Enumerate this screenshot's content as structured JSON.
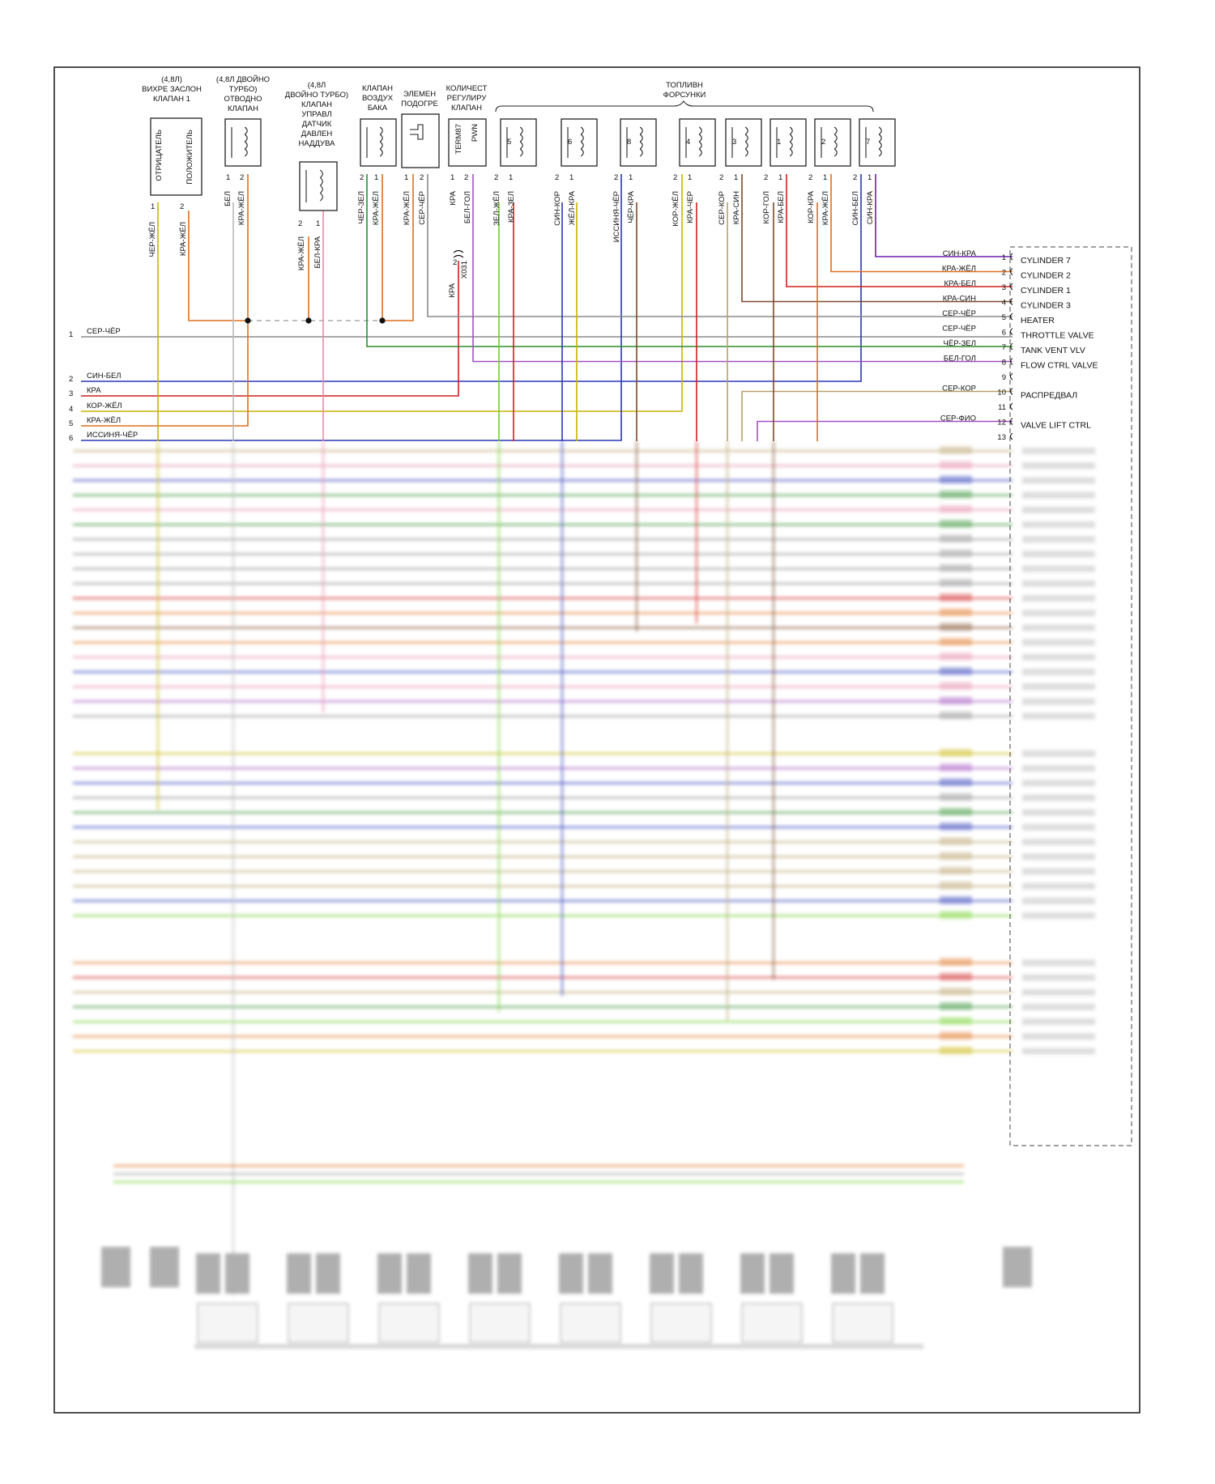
{
  "components": {
    "swirl_flap": {
      "title": [
        "(4,8Л)",
        "ВИХРЕ ЗАСЛОН",
        "КЛАПАН 1"
      ],
      "pins": [
        "ОТРИЦАТЕЛЬ",
        "ПОЛОЖИТЕЛЬ"
      ],
      "pin_numbers": [
        "1",
        "2"
      ],
      "wires": [
        "ЧЕР-ЖЁЛ",
        "КРА-ЖЁЛ"
      ]
    },
    "turbo_bypass": {
      "title": [
        "(4,8Л ДВОЙНО",
        "ТУРБО)",
        "ОТВОДНО",
        "КЛАПАН"
      ],
      "pin_numbers": [
        "1",
        "2"
      ],
      "wires": [
        "БЕЛ",
        "КРА-ЖЁЛ"
      ]
    },
    "boost_sensor": {
      "title": [
        "(4,8Л",
        "ДВОЙНО ТУРБО)",
        "КЛАПАН",
        "УПРАВЛ",
        "ДАТЧИК",
        "ДАВЛЕН",
        "НАДДУВА"
      ],
      "pin_numbers": [
        "2",
        "1"
      ],
      "wires": [
        "КРА-ЖЁЛ",
        "БЕЛ-КРА"
      ]
    },
    "tank_vent": {
      "title": [
        "КЛАПАН",
        "ВОЗДУХ",
        "БАКА"
      ],
      "pin_numbers": [
        "2",
        "1"
      ],
      "wires": [
        "ЧЕР-ЗЕЛ",
        "КРА-ЖЁЛ"
      ]
    },
    "heater": {
      "title": [
        "ЭЛЕМЕН",
        "ПОДОГРЕ"
      ],
      "pin_numbers": [
        "1",
        "2"
      ],
      "wires": [
        "КРА-ЖЁЛ",
        "СЕР-ЧЁР"
      ]
    },
    "flow_valve": {
      "title": [
        "КОЛИЧЕСТ",
        "РЕГУЛИРУ",
        "КЛАПАН"
      ],
      "inner": [
        "TERM87",
        "PWN"
      ],
      "pin_numbers": [
        "1",
        "2"
      ],
      "wires": [
        "КРА",
        "БЕЛ-ГОЛ"
      ],
      "connector": "X031",
      "connector_pin": "2",
      "below_wire": "КРА"
    },
    "injectors_title": [
      "ТОПЛИВН",
      "ФОРСУНКИ"
    ],
    "injectors": [
      {
        "num": "5",
        "wires": [
          "ЗЕЛ-ЖЁЛ",
          "КРА-ЗЕЛ"
        ]
      },
      {
        "num": "6",
        "wires": [
          "СИН-КОР",
          "ЖЁЛ-КРА"
        ]
      },
      {
        "num": "8",
        "wires": [
          "ИССИНЯ-ЧЁР",
          "ЧЁР-КРА"
        ]
      },
      {
        "num": "4",
        "wires": [
          "КОР-ЖЁЛ",
          "КРА-ЧЕР"
        ]
      },
      {
        "num": "3",
        "wires": [
          "СЕР-КОР",
          "КРА-СИН"
        ]
      },
      {
        "num": "1",
        "wires": [
          "КОР-ГОЛ",
          "КРА-БЕЛ"
        ]
      },
      {
        "num": "2",
        "wires": [
          "КОР-КРА",
          "КРА-ЖЁЛ"
        ]
      },
      {
        "num": "7",
        "wires": [
          "СИН-БЕЛ",
          "СИН-КРА"
        ]
      }
    ],
    "injector_pin_numbers": [
      "2",
      "1"
    ]
  },
  "left_terminals": [
    {
      "num": "1",
      "wire": "СЕР-ЧЁР"
    },
    {
      "num": "2",
      "wire": "СИН-БЕЛ"
    },
    {
      "num": "3",
      "wire": "КРА"
    },
    {
      "num": "4",
      "wire": "КОР-ЖЁЛ"
    },
    {
      "num": "5",
      "wire": "КРА-ЖЁЛ"
    },
    {
      "num": "6",
      "wire": "ИССИНЯ-ЧЁР"
    }
  ],
  "ecu_pins": [
    {
      "num": "1",
      "wire": "СИН-КРА",
      "label": "CYLINDER 7"
    },
    {
      "num": "2",
      "wire": "КРА-ЖЁЛ",
      "label": "CYLINDER 2"
    },
    {
      "num": "3",
      "wire": "КРА-БЕЛ",
      "label": "CYLINDER 1"
    },
    {
      "num": "4",
      "wire": "КРА-СИН",
      "label": "CYLINDER 3"
    },
    {
      "num": "5",
      "wire": "СЕР-ЧЁР",
      "label": "HEATER"
    },
    {
      "num": "6",
      "wire": "СЕР-ЧЁР",
      "label": "THROTTLE VALVE"
    },
    {
      "num": "7",
      "wire": "ЧЁР-ЗЕЛ",
      "label": "TANK VENT VLV"
    },
    {
      "num": "8",
      "wire": "БЕЛ-ГОЛ",
      "label": "FLOW CTRL VALVE"
    },
    {
      "num": "9",
      "wire": "",
      "label": ""
    },
    {
      "num": "10",
      "wire": "СЕР-КОР",
      "label": "РАСПРЕДВАЛ"
    },
    {
      "num": "11",
      "wire": "",
      "label": ""
    },
    {
      "num": "12",
      "wire": "СЕР-ФИО",
      "label": "VALVE LIFT CTRL"
    },
    {
      "num": "13",
      "wire": "",
      "label": ""
    }
  ],
  "colors": {
    "grey": "#8c8c8c",
    "red": "#d11f1f",
    "orange": "#e0701c",
    "yellow": "#c8b400",
    "blue": "#2a37b5",
    "purple": "#6b1fb0",
    "brown": "#7b4a2a",
    "green": "#2e8b2e",
    "lime": "#6fd12a",
    "pink": "#e58aa8",
    "violet": "#a050c0",
    "tan": "#b8a06a"
  }
}
